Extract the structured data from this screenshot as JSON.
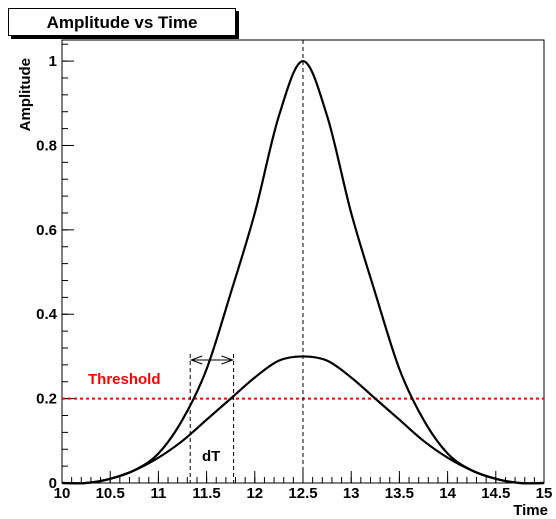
{
  "chart_data": {
    "type": "line",
    "title": "Amplitude vs Time",
    "xlabel": "Time",
    "ylabel": "Amplitude",
    "xlim": [
      10,
      15
    ],
    "ylim": [
      0,
      1.05
    ],
    "x_ticks": [
      "10",
      "10.5",
      "11",
      "11.5",
      "12",
      "12.5",
      "13",
      "13.5",
      "14",
      "14.5",
      "15"
    ],
    "y_ticks": [
      "0",
      "0.2",
      "0.4",
      "0.6",
      "0.8",
      "1"
    ],
    "grid": false,
    "series": [
      {
        "color": "#000000",
        "x": [
          10.0,
          10.25,
          10.5,
          10.75,
          11.0,
          11.25,
          11.5,
          11.75,
          12.0,
          12.25,
          12.5,
          12.75,
          13.0,
          13.25,
          13.5,
          13.75,
          14.0,
          14.25,
          14.5,
          14.75,
          15.0
        ],
        "y": [
          0.0,
          0.0,
          0.01,
          0.03,
          0.07,
          0.15,
          0.27,
          0.45,
          0.64,
          0.87,
          1.0,
          0.87,
          0.64,
          0.45,
          0.27,
          0.15,
          0.07,
          0.03,
          0.01,
          0.0,
          0.0
        ]
      },
      {
        "color": "#000000",
        "x": [
          10.0,
          10.25,
          10.5,
          10.75,
          11.0,
          11.25,
          11.5,
          11.75,
          12.0,
          12.25,
          12.5,
          12.75,
          13.0,
          13.25,
          13.5,
          13.75,
          14.0,
          14.25,
          14.5,
          14.75,
          15.0
        ],
        "y": [
          0.0,
          0.0,
          0.01,
          0.03,
          0.06,
          0.1,
          0.15,
          0.2,
          0.25,
          0.29,
          0.3,
          0.29,
          0.25,
          0.2,
          0.15,
          0.1,
          0.06,
          0.03,
          0.01,
          0.0,
          0.0
        ]
      }
    ],
    "threshold": {
      "label": "Threshold",
      "value": 0.2,
      "color": "#ff0000"
    },
    "peak_x": 12.5,
    "dt_marker": {
      "label": "dT",
      "x_start": 11.33,
      "x_end": 11.78
    }
  }
}
